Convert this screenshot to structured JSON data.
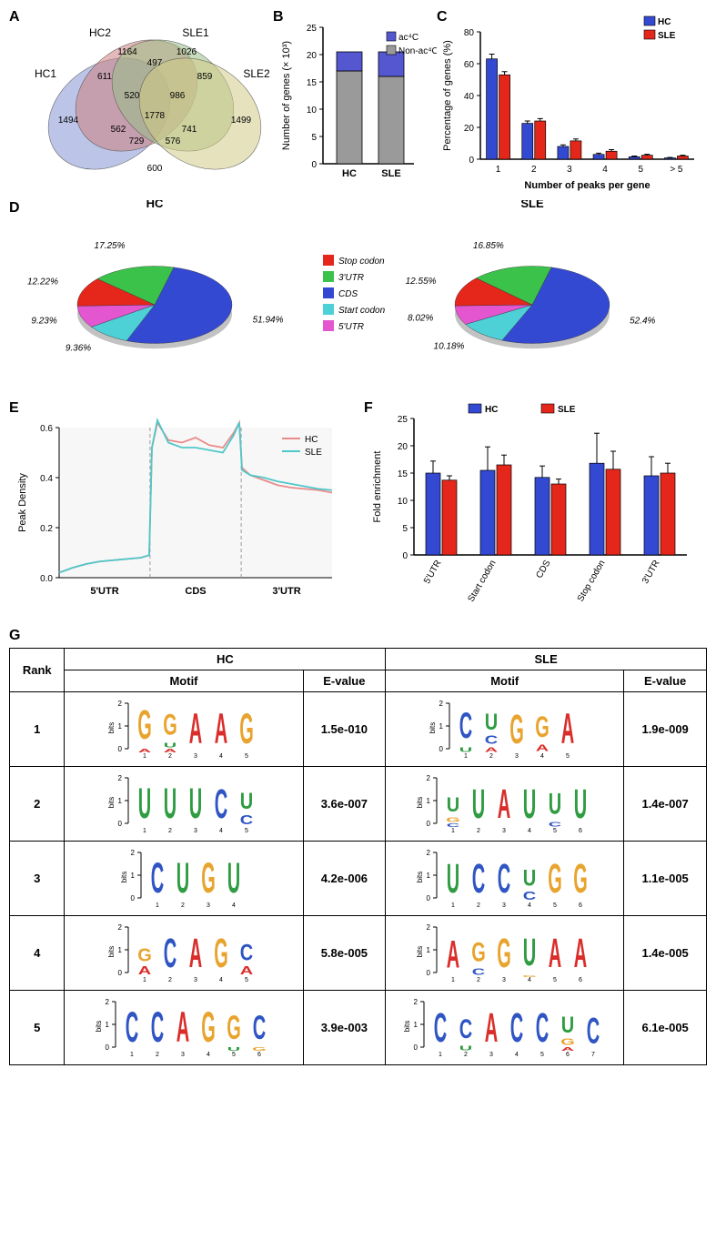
{
  "colors": {
    "hc_blue": "#3449d1",
    "sle_red": "#e4261b",
    "gray": "#9a9a9a",
    "ac4c": "#5457d0",
    "venn_hc1": "#8596d4",
    "venn_hc2": "#cd7f80",
    "venn_sle1": "#99bd86",
    "venn_sle2": "#d2cb87",
    "pie_stopcodon": "#e4261b",
    "pie_3utr": "#3bc24a",
    "pie_cds": "#3449d1",
    "pie_startcodon": "#4dd0d6",
    "pie_5utr": "#e455d0",
    "line_hc": "#e98b8a",
    "line_sle": "#4fc8ca",
    "motif_A": "#d92e2a",
    "motif_C": "#2f55c4",
    "motif_G": "#e8a42e",
    "motif_U": "#2f9c42"
  },
  "panelA": {
    "label": "A",
    "sets": [
      "HC1",
      "HC2",
      "SLE1",
      "SLE2"
    ],
    "values": {
      "hc1_only": 1494,
      "hc2_only": 1164,
      "sle1_only": 1026,
      "sle2_only": 1499,
      "hc1_hc2": 611,
      "hc2_sle1": 497,
      "sle1_sle2": 859,
      "hc1_sle2": 600,
      "hc1_sle1": 562,
      "hc2_sle2": 741,
      "hc1_hc2_sle1": 520,
      "hc2_sle1_sle2": 986,
      "hc1_sle1_sle2": 729,
      "hc1_hc2_sle2": 576,
      "all": 1778
    }
  },
  "panelB": {
    "label": "B",
    "ylabel": "Number of genes (× 10³)",
    "ymax": 25,
    "ytick": 5,
    "categories": [
      "HC",
      "SLE"
    ],
    "legend": [
      "ac⁴C",
      "Non-ac⁴C"
    ],
    "data": {
      "HC": {
        "non_ac4c": 17,
        "ac4c": 3.5
      },
      "SLE": {
        "non_ac4c": 16,
        "ac4c": 4.5
      }
    }
  },
  "panelC": {
    "label": "C",
    "ylabel": "Percentage of genes (%)",
    "xlabel": "Number of peaks per gene",
    "ymax": 80,
    "ytick": 20,
    "categories": [
      "1",
      "2",
      "3",
      "4",
      "5",
      "> 5"
    ],
    "legend": [
      "HC",
      "SLE"
    ],
    "hc": [
      63,
      22.5,
      8,
      3,
      1.5,
      0.8
    ],
    "sle": [
      53,
      24,
      11.5,
      5,
      2.5,
      2
    ],
    "hc_err": [
      3,
      1.5,
      1,
      0.8,
      0.5,
      0.3
    ],
    "sle_err": [
      2,
      1.5,
      1.2,
      1,
      0.6,
      0.5
    ]
  },
  "panelD": {
    "label": "D",
    "titles": [
      "HC",
      "SLE"
    ],
    "legend": [
      "Stop codon",
      "3'UTR",
      "CDS",
      "Start codon",
      "5'UTR"
    ],
    "hc": {
      "Stop codon": 12.22,
      "3'UTR": 17.25,
      "CDS": 51.94,
      "Start codon": 9.36,
      "5'UTR": 9.23
    },
    "sle": {
      "Stop codon": 12.55,
      "3'UTR": 16.85,
      "CDS": 52.4,
      "Start codon": 10.18,
      "5'UTR": 8.02
    }
  },
  "panelE": {
    "label": "E",
    "ylabel": "Peak Density",
    "ylim": [
      0.0,
      0.6
    ],
    "ytick": 0.2,
    "regions": [
      "5'UTR",
      "CDS",
      "3'UTR"
    ],
    "legend": [
      "HC",
      "SLE"
    ],
    "x": [
      0,
      0.05,
      0.1,
      0.15,
      0.2,
      0.25,
      0.3,
      0.33,
      0.34,
      0.36,
      0.4,
      0.45,
      0.5,
      0.55,
      0.6,
      0.64,
      0.66,
      0.67,
      0.7,
      0.75,
      0.8,
      0.85,
      0.9,
      0.95,
      1.0
    ],
    "hc": [
      0.02,
      0.04,
      0.055,
      0.065,
      0.07,
      0.075,
      0.08,
      0.09,
      0.52,
      0.62,
      0.55,
      0.54,
      0.56,
      0.53,
      0.52,
      0.58,
      0.62,
      0.44,
      0.41,
      0.39,
      0.37,
      0.36,
      0.355,
      0.35,
      0.34
    ],
    "sle": [
      0.02,
      0.04,
      0.055,
      0.065,
      0.07,
      0.075,
      0.08,
      0.09,
      0.52,
      0.63,
      0.54,
      0.52,
      0.52,
      0.51,
      0.5,
      0.57,
      0.62,
      0.43,
      0.41,
      0.4,
      0.385,
      0.375,
      0.365,
      0.355,
      0.35
    ]
  },
  "panelF": {
    "label": "F",
    "ylabel": "Fold enrichment",
    "ymax": 25,
    "ytick": 5,
    "categories": [
      "5'UTR",
      "Start codon",
      "CDS",
      "Stop codon",
      "3'UTR"
    ],
    "legend": [
      "HC",
      "SLE"
    ],
    "hc": [
      15,
      15.5,
      14.2,
      16.8,
      14.5
    ],
    "sle": [
      13.7,
      16.5,
      13,
      15.7,
      15
    ],
    "hc_err": [
      2.2,
      4.3,
      2.1,
      5.5,
      3.5
    ],
    "sle_err": [
      0.8,
      1.8,
      0.9,
      3.3,
      1.8
    ]
  },
  "panelG": {
    "label": "G",
    "headers": {
      "rank": "Rank",
      "motif": "Motif",
      "evalue": "E-value",
      "hc": "HC",
      "sle": "SLE"
    },
    "rows": [
      {
        "rank": 1,
        "hc": {
          "seq": [
            [
              [
                "G",
                1.8
              ],
              [
                "A",
                0.2
              ]
            ],
            [
              [
                "G",
                1.3
              ],
              [
                "U",
                0.3
              ],
              [
                "A",
                0.2
              ]
            ],
            [
              [
                "A",
                1.9
              ]
            ],
            [
              [
                "A",
                1.9
              ]
            ],
            [
              [
                "G",
                1.9
              ]
            ]
          ],
          "evalue": "1.5e-010"
        },
        "sle": {
          "seq": [
            [
              [
                "C",
                1.6
              ],
              [
                "U",
                0.3
              ]
            ],
            [
              [
                "U",
                1.0
              ],
              [
                "C",
                0.5
              ],
              [
                "A",
                0.3
              ]
            ],
            [
              [
                "G",
                1.8
              ]
            ],
            [
              [
                "G",
                1.3
              ],
              [
                "A",
                0.4
              ]
            ],
            [
              [
                "A",
                1.9
              ]
            ]
          ],
          "evalue": "1.9e-009"
        }
      },
      {
        "rank": 2,
        "hc": {
          "seq": [
            [
              [
                "U",
                1.9
              ]
            ],
            [
              [
                "U",
                1.9
              ]
            ],
            [
              [
                "U",
                1.9
              ]
            ],
            [
              [
                "C",
                1.8
              ]
            ],
            [
              [
                "U",
                1.0
              ],
              [
                "C",
                0.6
              ]
            ]
          ],
          "evalue": "3.6e-007"
        },
        "sle": {
          "seq": [
            [
              [
                "U",
                0.9
              ],
              [
                "G",
                0.3
              ],
              [
                "C",
                0.2
              ]
            ],
            [
              [
                "U",
                1.8
              ]
            ],
            [
              [
                "A",
                1.8
              ]
            ],
            [
              [
                "U",
                1.8
              ]
            ],
            [
              [
                "U",
                1.3
              ],
              [
                "C",
                0.3
              ]
            ],
            [
              [
                "U",
                1.8
              ]
            ]
          ],
          "evalue": "1.4e-007"
        }
      },
      {
        "rank": 3,
        "hc": {
          "seq": [
            [
              [
                "C",
                1.9
              ]
            ],
            [
              [
                "U",
                1.9
              ]
            ],
            [
              [
                "G",
                1.9
              ]
            ],
            [
              [
                "U",
                1.9
              ]
            ]
          ],
          "evalue": "4.2e-006"
        },
        "sle": {
          "seq": [
            [
              [
                "U",
                1.8
              ]
            ],
            [
              [
                "C",
                1.8
              ]
            ],
            [
              [
                "C",
                1.8
              ]
            ],
            [
              [
                "U",
                1.0
              ],
              [
                "C",
                0.5
              ]
            ],
            [
              [
                "G",
                1.8
              ]
            ],
            [
              [
                "G",
                1.8
              ]
            ]
          ],
          "evalue": "1.1e-005"
        }
      },
      {
        "rank": 4,
        "hc": {
          "seq": [
            [
              [
                "G",
                0.8
              ],
              [
                "A",
                0.5
              ]
            ],
            [
              [
                "C",
                1.8
              ]
            ],
            [
              [
                "A",
                1.8
              ]
            ],
            [
              [
                "G",
                1.8
              ]
            ],
            [
              [
                "C",
                1.0
              ],
              [
                "A",
                0.5
              ]
            ]
          ],
          "evalue": "5.8e-005"
        },
        "sle": {
          "seq": [
            [
              [
                "A",
                1.7
              ]
            ],
            [
              [
                "G",
                1.2
              ],
              [
                "C",
                0.4
              ]
            ],
            [
              [
                "G",
                1.8
              ]
            ],
            [
              [
                "U",
                1.7
              ],
              [
                "G",
                0.1
              ]
            ],
            [
              [
                "A",
                1.8
              ]
            ],
            [
              [
                "A",
                1.8
              ]
            ]
          ],
          "evalue": "1.4e-005"
        }
      },
      {
        "rank": 5,
        "hc": {
          "seq": [
            [
              [
                "C",
                1.9
              ]
            ],
            [
              [
                "C",
                1.9
              ]
            ],
            [
              [
                "A",
                1.9
              ]
            ],
            [
              [
                "G",
                1.9
              ]
            ],
            [
              [
                "G",
                1.5
              ],
              [
                "U",
                0.2
              ]
            ],
            [
              [
                "C",
                1.5
              ],
              [
                "G",
                0.2
              ]
            ]
          ],
          "evalue": "3.9e-003"
        },
        "sle": {
          "seq": [
            [
              [
                "C",
                1.8
              ]
            ],
            [
              [
                "C",
                1.2
              ],
              [
                "U",
                0.3
              ]
            ],
            [
              [
                "A",
                1.8
              ]
            ],
            [
              [
                "C",
                1.8
              ]
            ],
            [
              [
                "C",
                1.8
              ]
            ],
            [
              [
                "U",
                1.0
              ],
              [
                "G",
                0.4
              ],
              [
                "A",
                0.2
              ]
            ],
            [
              [
                "C",
                1.6
              ]
            ]
          ],
          "evalue": "6.1e-005"
        }
      }
    ]
  }
}
